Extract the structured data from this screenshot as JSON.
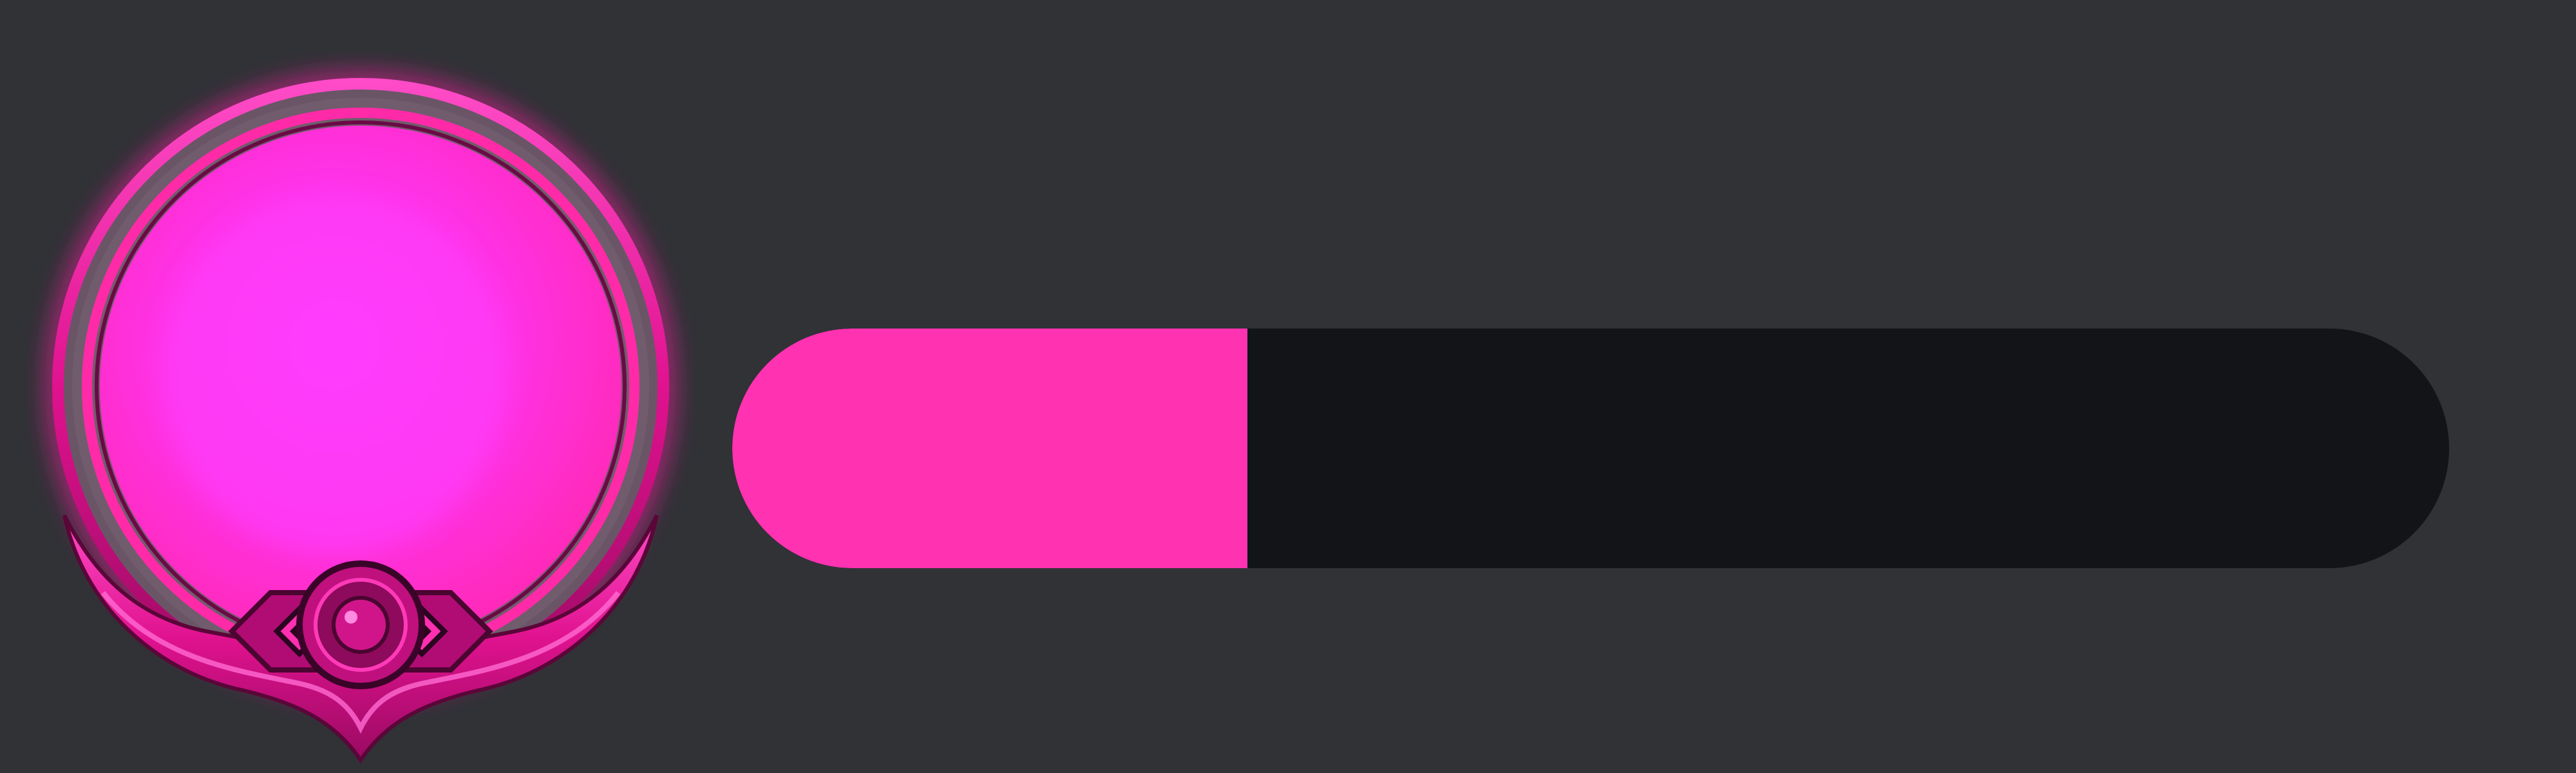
{
  "avatar_frame": {
    "icon": "orb-frame-icon",
    "color": "#ff1aa6",
    "glow_color": "#ff2fe8"
  },
  "progress": {
    "value": 0.3,
    "fill_color": "#ff32b2",
    "track_color": "#121417"
  },
  "background_color": "#303236"
}
